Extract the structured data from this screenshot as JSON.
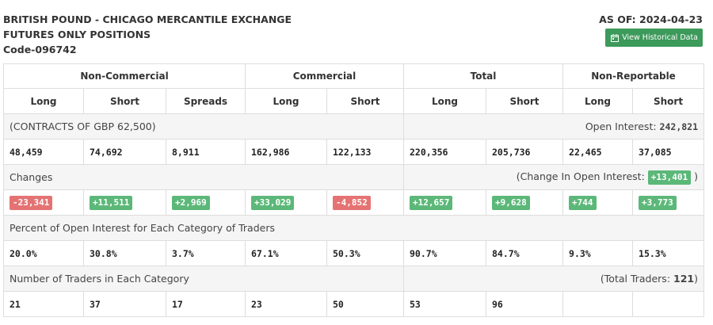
{
  "header": {
    "title_line1": "BRITISH POUND - CHICAGO MERCANTILE EXCHANGE",
    "title_line2": "FUTURES ONLY POSITIONS",
    "code": "Code-096742",
    "as_of": "AS OF: 2024-04-23",
    "history_button": "View Historical Data",
    "history_icon": "calendar-icon"
  },
  "colors": {
    "positive": "#5cb879",
    "negative": "#e57373",
    "button": "#3c9a5a"
  },
  "groups": [
    "Non-Commercial",
    "Commercial",
    "Total",
    "Non-Reportable"
  ],
  "columns": [
    "Long",
    "Short",
    "Spreads",
    "Long",
    "Short",
    "Long",
    "Short",
    "Long",
    "Short"
  ],
  "contracts": {
    "label": "(CONTRACTS OF GBP 62,500)",
    "oi_label": "Open Interest:",
    "oi_value": "242,821",
    "values": [
      "48,459",
      "74,692",
      "8,911",
      "162,986",
      "122,133",
      "220,356",
      "205,736",
      "22,465",
      "37,085"
    ]
  },
  "changes": {
    "label": "Changes",
    "oi_prefix": "(Change In Open Interest:",
    "oi_value": "+13,401",
    "oi_suffix": ")",
    "values": [
      "-23,341",
      "+11,511",
      "+2,969",
      "+33,029",
      "-4,852",
      "+12,657",
      "+9,628",
      "+744",
      "+3,773"
    ]
  },
  "percent": {
    "label": "Percent of Open Interest for Each Category of Traders",
    "values": [
      "20.0%",
      "30.8%",
      "3.7%",
      "67.1%",
      "50.3%",
      "90.7%",
      "84.7%",
      "9.3%",
      "15.3%"
    ]
  },
  "traders": {
    "label": "Number of Traders in Each Category",
    "total_label": "(Total Traders:",
    "total_value": "121",
    "total_suffix": ")",
    "values": [
      "21",
      "37",
      "17",
      "23",
      "50",
      "53",
      "96",
      "",
      ""
    ]
  }
}
